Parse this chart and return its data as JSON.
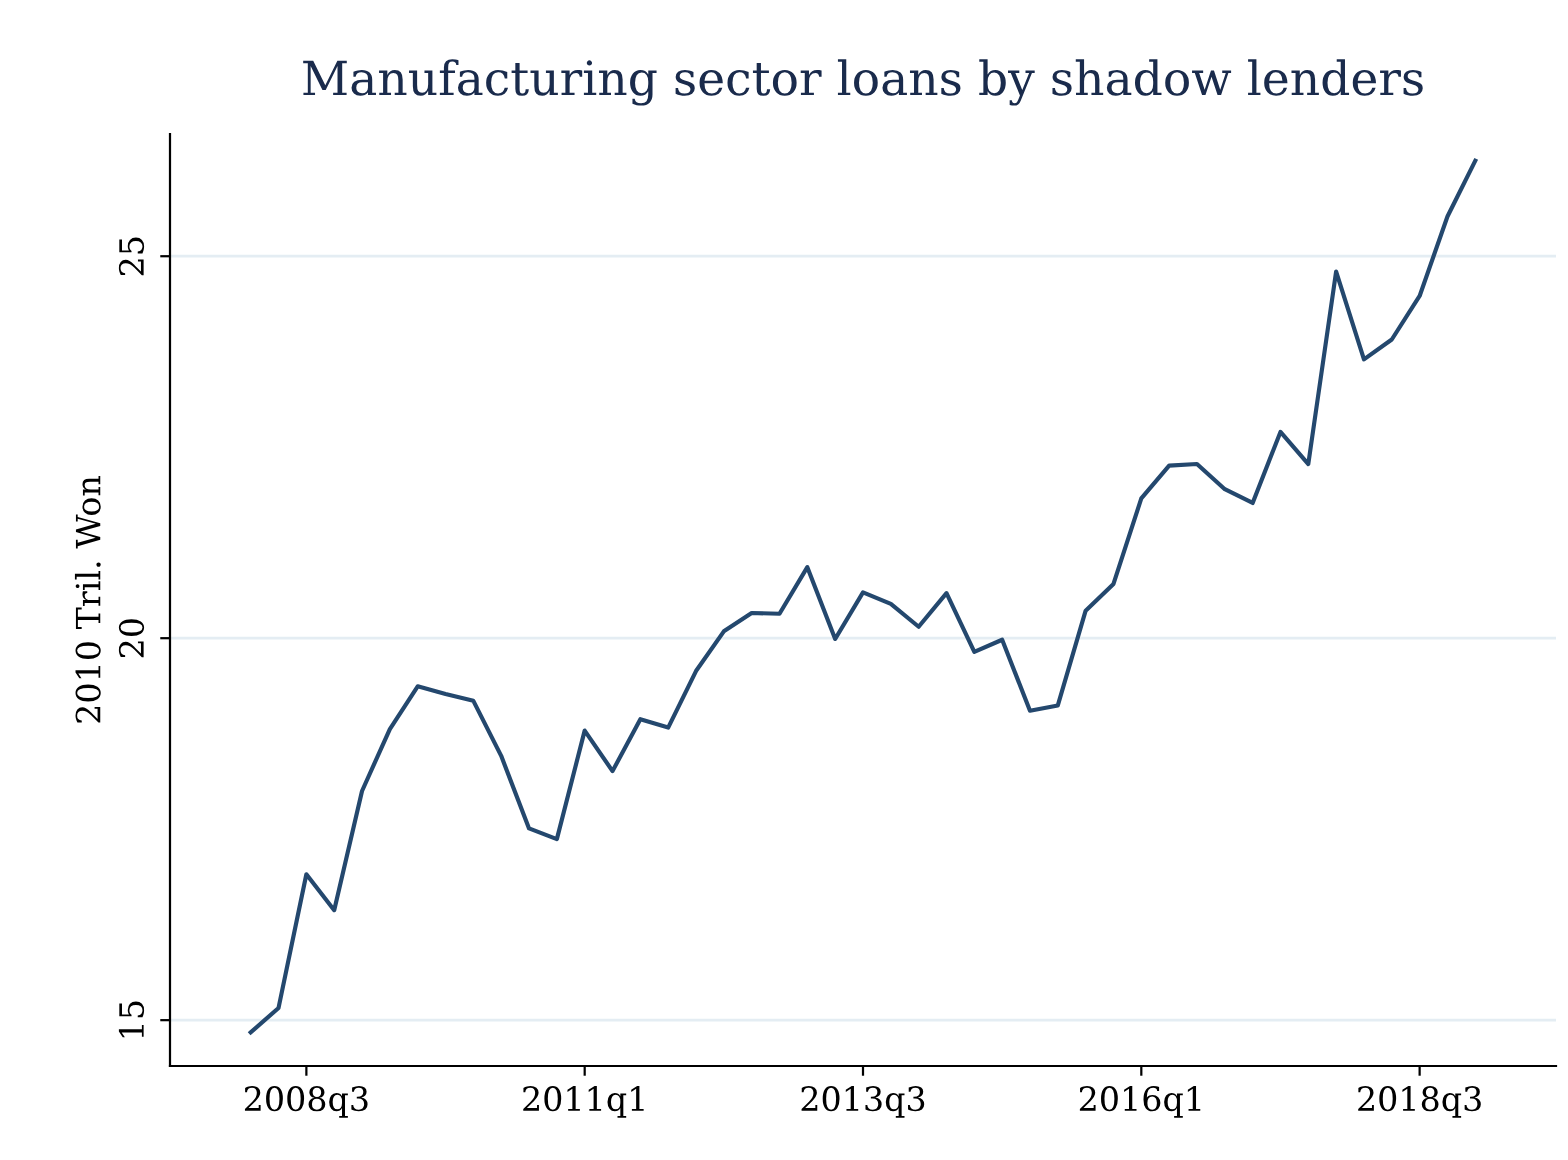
{
  "chart_data": {
    "type": "line",
    "title": "Manufacturing sector loans by shadow lenders",
    "ylabel": "2010 Tril. Won",
    "categories": [
      null,
      null,
      "2008q3",
      null,
      null,
      null,
      null,
      null,
      null,
      null,
      null,
      null,
      "2011q1",
      null,
      null,
      null,
      null,
      null,
      null,
      null,
      null,
      null,
      "2013q3",
      null,
      null,
      null,
      null,
      null,
      null,
      null,
      null,
      null,
      "2016q1",
      null,
      null,
      null,
      null,
      null,
      null,
      null,
      null,
      null,
      "2018q3",
      null,
      null
    ],
    "series": [
      {
        "color": "#24486e",
        "values": [
          14.84,
          15.16,
          16.91,
          16.44,
          18.0,
          18.81,
          19.37,
          19.27,
          19.18,
          18.46,
          17.51,
          17.37,
          18.79,
          18.26,
          18.94,
          18.83,
          19.57,
          20.09,
          20.33,
          20.32,
          20.93,
          19.99,
          20.6,
          20.45,
          20.15,
          20.59,
          19.82,
          19.98,
          19.05,
          19.12,
          20.36,
          20.71,
          21.83,
          22.26,
          22.28,
          21.95,
          21.77,
          22.7,
          22.28,
          24.8,
          23.65,
          23.91,
          24.48,
          25.52,
          26.25
        ]
      }
    ],
    "ylim": [
      14.4,
      26.6
    ],
    "yticks": [
      15,
      20,
      25
    ],
    "grid": "y"
  }
}
